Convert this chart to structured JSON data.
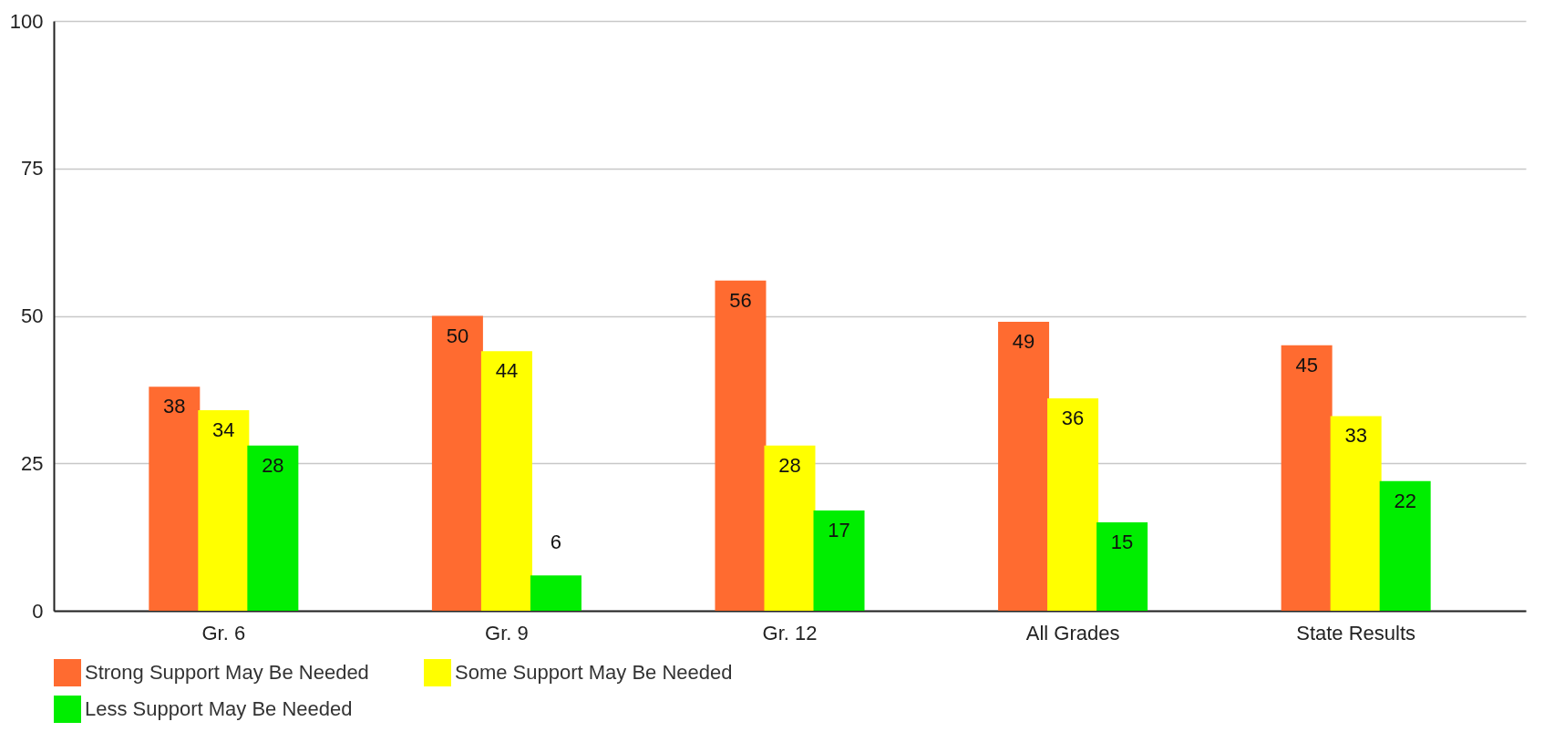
{
  "chart_data": {
    "type": "bar",
    "categories": [
      "Gr. 6",
      "Gr. 9",
      "Gr. 12",
      "All Grades",
      "State Results"
    ],
    "series": [
      {
        "name": "Strong Support May Be Needed",
        "color": "#ff6b30",
        "values": [
          38,
          50,
          56,
          49,
          45
        ]
      },
      {
        "name": "Some Support May Be Needed",
        "color": "#ffff00",
        "values": [
          34,
          44,
          28,
          36,
          33
        ]
      },
      {
        "name": "Less Support May Be Needed",
        "color": "#00ee00",
        "values": [
          28,
          6,
          17,
          15,
          22
        ]
      }
    ],
    "ylim": [
      0,
      100
    ],
    "yticks": [
      0,
      25,
      50,
      75,
      100
    ],
    "grid": "y",
    "legend": "bottom",
    "data_labels": true
  }
}
